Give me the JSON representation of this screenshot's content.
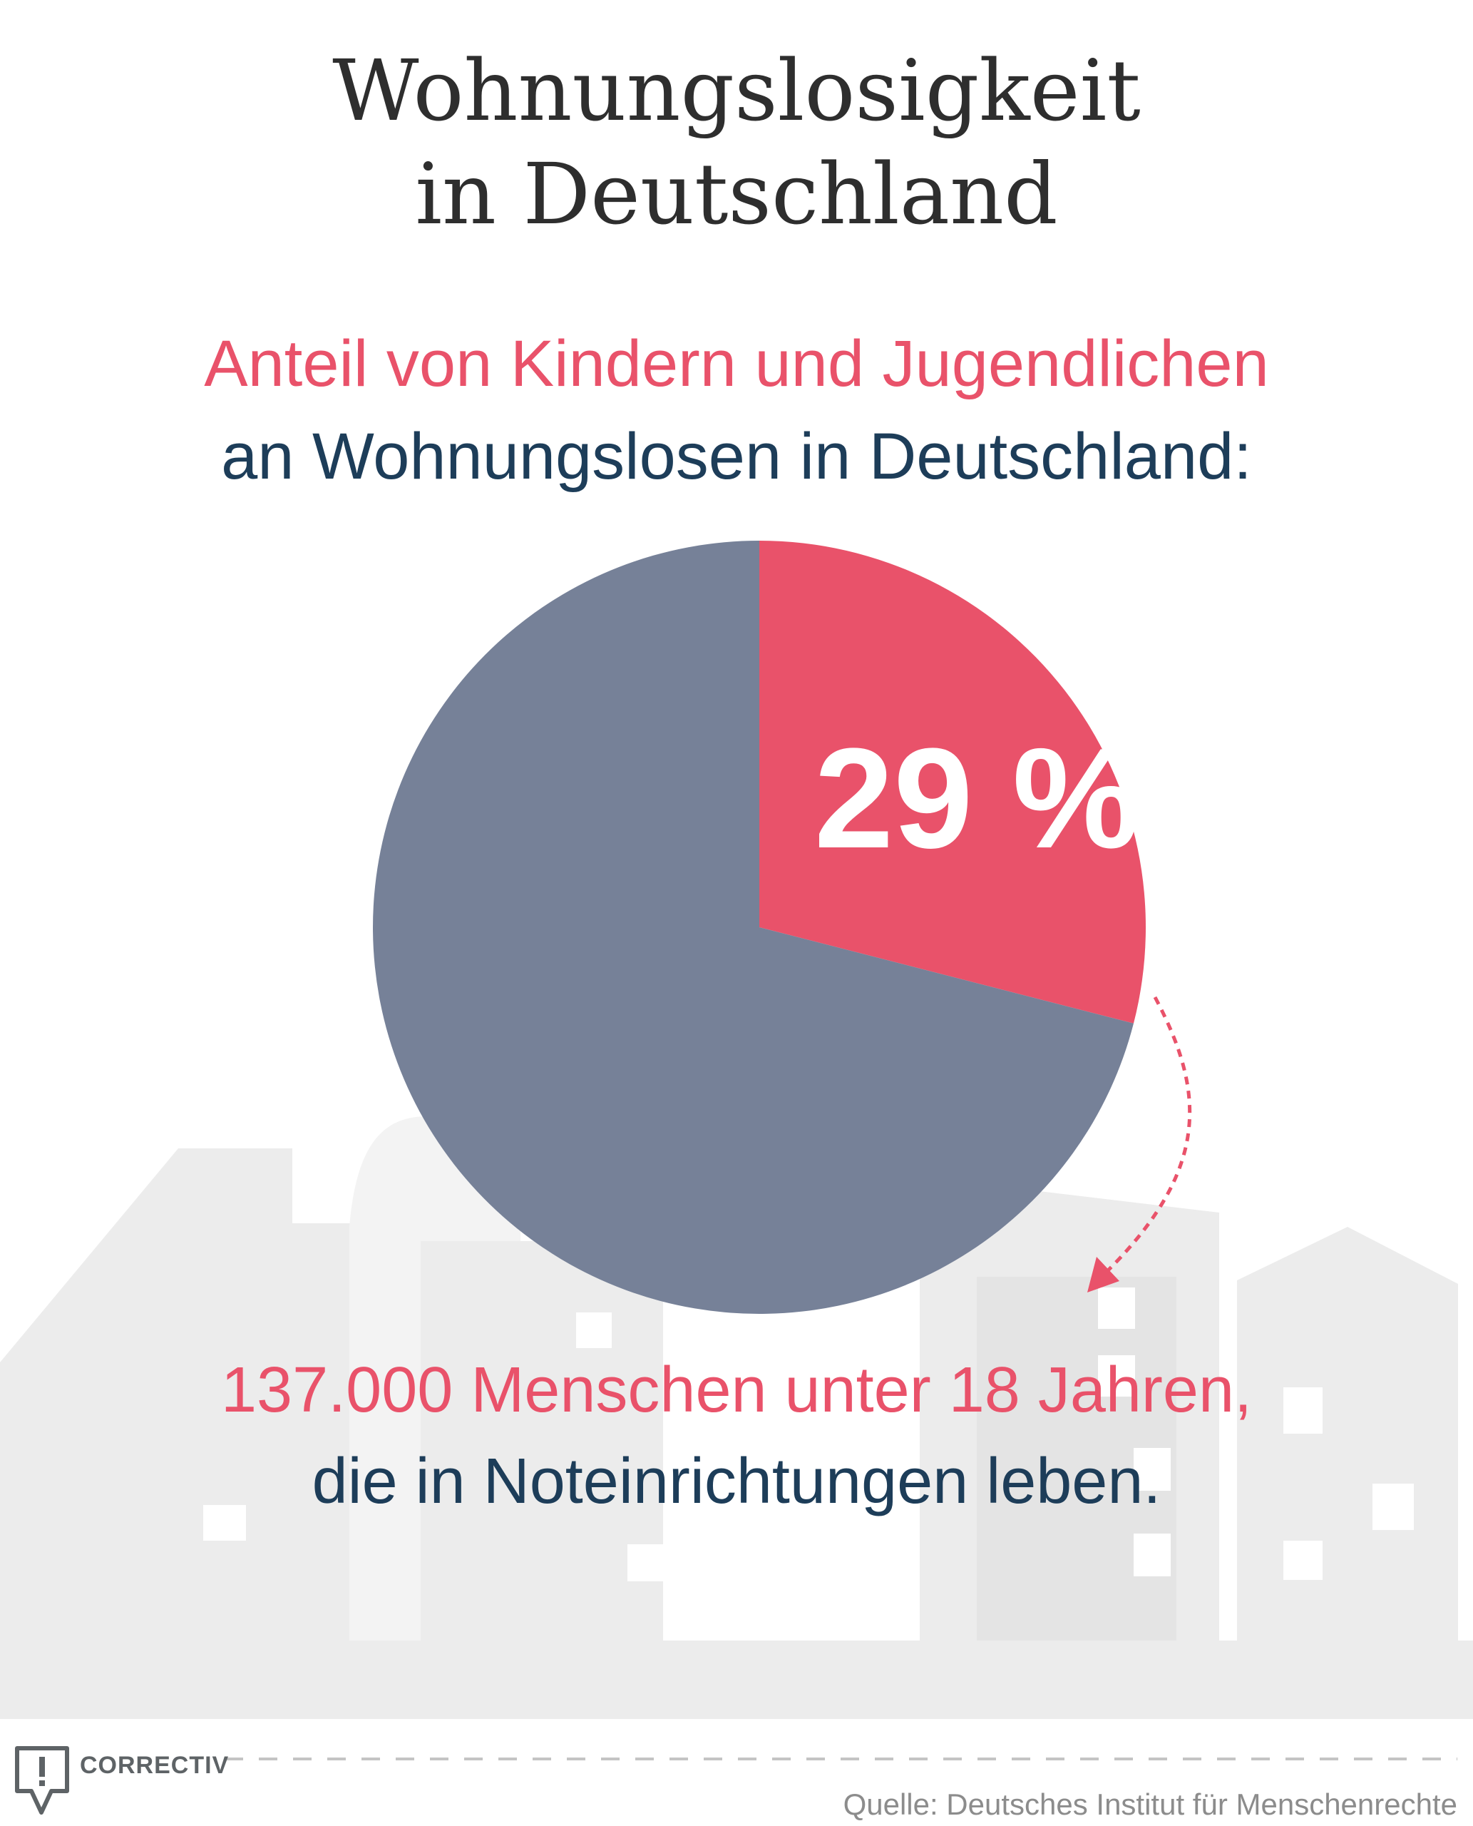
{
  "title": {
    "line1": "Wohnungslosigkeit",
    "line2": "in Deutschland"
  },
  "subtitle": {
    "line1": "Anteil von Kindern und Jugendlichen",
    "line2": "an Wohnungslosen in Deutschland:"
  },
  "chart_data": {
    "type": "pie",
    "title": "Anteil von Kindern und Jugendlichen an Wohnungslosen in Deutschland:",
    "slices": [
      {
        "value": 29,
        "label": "29 %",
        "color": "#e9526a"
      },
      {
        "value": 71,
        "color": "#768198"
      }
    ]
  },
  "annotation": {
    "line1": "137.000 Menschen unter 18 Jahren,",
    "line2": "die in Noteinrichtungen leben."
  },
  "footer": {
    "brand": "CORRECTIV",
    "source": "Quelle: Deutsches Institut für Menschenrechte"
  },
  "colors": {
    "accent": "#e9526a",
    "pie_rest": "#768198",
    "navy_text": "#1d3d59",
    "title_text": "#2e2e2e",
    "skyline": "#ececec"
  },
  "icons": {
    "brand_logo": "speech-bubble-exclamation-icon",
    "arrow": "dotted-curved-arrow-icon"
  }
}
